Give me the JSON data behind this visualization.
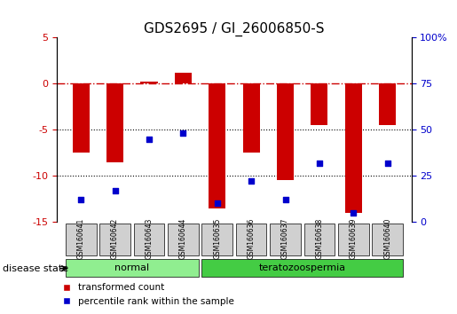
{
  "title": "GDS2695 / GI_26006850-S",
  "samples": [
    "GSM160641",
    "GSM160642",
    "GSM160643",
    "GSM160644",
    "GSM160635",
    "GSM160636",
    "GSM160637",
    "GSM160638",
    "GSM160639",
    "GSM160640"
  ],
  "transformed_count": [
    -7.5,
    -8.5,
    0.2,
    1.2,
    -13.5,
    -7.5,
    -10.5,
    -4.5,
    -14.0,
    -4.5
  ],
  "percentile_rank": [
    12,
    17,
    45,
    48,
    10,
    22,
    12,
    32,
    5,
    32
  ],
  "ylim_left": [
    -15,
    5
  ],
  "yticks_left": [
    -15,
    -10,
    -5,
    0,
    5
  ],
  "ylim_right": [
    0,
    100
  ],
  "yticks_right": [
    0,
    25,
    50,
    75,
    100
  ],
  "bar_color": "#cc0000",
  "dot_color": "#0000cc",
  "normal_group": [
    "GSM160641",
    "GSM160642",
    "GSM160643",
    "GSM160644"
  ],
  "disease_group": [
    "GSM160635",
    "GSM160636",
    "GSM160637",
    "GSM160638",
    "GSM160639",
    "GSM160640"
  ],
  "normal_label": "normal",
  "disease_label": "teratozoospermia",
  "disease_state_label": "disease state",
  "legend_bar_label": "transformed count",
  "legend_dot_label": "percentile rank within the sample",
  "normal_color": "#90ee90",
  "disease_color": "#44cc44",
  "sample_box_color": "#d0d0d0",
  "hline_color": "#cc0000",
  "dotted_color": "#000000",
  "bar_width": 0.5
}
